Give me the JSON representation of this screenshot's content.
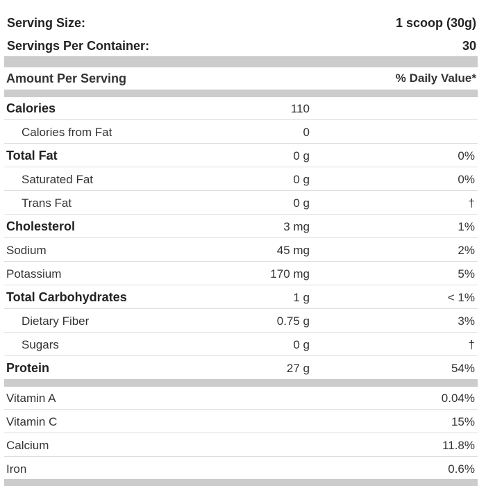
{
  "header": {
    "serving_size_label": "Serving Size:",
    "serving_size_value": "1 scoop (30g)",
    "servings_label": "Servings Per Container:",
    "servings_value": "30"
  },
  "columns": {
    "amount_per_serving": "Amount Per Serving",
    "daily_value": "% Daily Value*"
  },
  "nutrients": [
    {
      "name": "Calories",
      "amount": "110",
      "dv": ""
    },
    {
      "name": "Calories from Fat",
      "amount": "0",
      "dv": ""
    },
    {
      "name": "Total Fat",
      "amount": "0 g",
      "dv": "0%"
    },
    {
      "name": "Saturated Fat",
      "amount": "0 g",
      "dv": "0%"
    },
    {
      "name": "Trans Fat",
      "amount": "0 g",
      "dv": "†"
    },
    {
      "name": "Cholesterol",
      "amount": "3 mg",
      "dv": "1%"
    },
    {
      "name": "Sodium",
      "amount": "45 mg",
      "dv": "2%"
    },
    {
      "name": "Potassium",
      "amount": "170 mg",
      "dv": "5%"
    },
    {
      "name": "Total Carbohydrates",
      "amount": "1 g",
      "dv": "< 1%"
    },
    {
      "name": "Dietary Fiber",
      "amount": "0.75 g",
      "dv": "3%"
    },
    {
      "name": "Sugars",
      "amount": "0 g",
      "dv": "†"
    },
    {
      "name": "Protein",
      "amount": "27 g",
      "dv": "54%"
    }
  ],
  "vitamins": [
    {
      "name": "Vitamin A",
      "dv": "0.04%"
    },
    {
      "name": "Vitamin C",
      "dv": "15%"
    },
    {
      "name": "Calcium",
      "dv": "11.8%"
    },
    {
      "name": "Iron",
      "dv": "0.6%"
    }
  ]
}
